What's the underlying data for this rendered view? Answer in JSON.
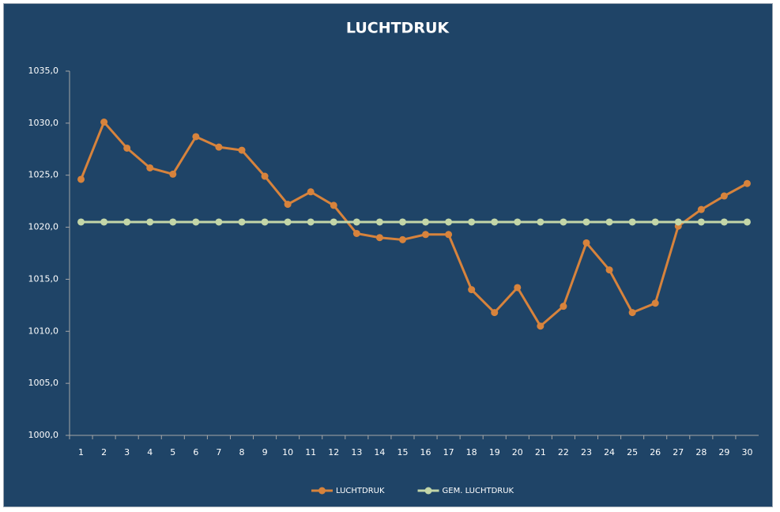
{
  "chart_data": {
    "type": "line",
    "title": "LUCHTDRUK",
    "categories": [
      "1",
      "2",
      "3",
      "4",
      "5",
      "6",
      "7",
      "8",
      "9",
      "10",
      "11",
      "12",
      "13",
      "14",
      "15",
      "16",
      "17",
      "18",
      "19",
      "20",
      "21",
      "22",
      "23",
      "24",
      "25",
      "26",
      "27",
      "28",
      "29",
      "30"
    ],
    "series": [
      {
        "name": "LUCHTDRUK",
        "color": "#d7833c",
        "values": [
          1024.6,
          1030.1,
          1027.6,
          1025.7,
          1025.1,
          1028.7,
          1027.7,
          1027.4,
          1024.9,
          1022.2,
          1023.4,
          1022.1,
          1019.4,
          1019.0,
          1018.8,
          1019.3,
          1019.3,
          1014.0,
          1011.8,
          1014.2,
          1010.5,
          1012.4,
          1018.5,
          1015.9,
          1011.8,
          1012.7,
          1020.1,
          1021.7,
          1023.0,
          1024.2
        ]
      },
      {
        "name": "GEM. LUCHTDRUK",
        "color": "#c3d6a8",
        "values": [
          1020.5,
          1020.5,
          1020.5,
          1020.5,
          1020.5,
          1020.5,
          1020.5,
          1020.5,
          1020.5,
          1020.5,
          1020.5,
          1020.5,
          1020.5,
          1020.5,
          1020.5,
          1020.5,
          1020.5,
          1020.5,
          1020.5,
          1020.5,
          1020.5,
          1020.5,
          1020.5,
          1020.5,
          1020.5,
          1020.5,
          1020.5,
          1020.5,
          1020.5,
          1020.5
        ]
      }
    ],
    "ylim": [
      1000,
      1035
    ],
    "yticks": [
      {
        "value": 1000,
        "label": "1000,0"
      },
      {
        "value": 1005,
        "label": "1005,0"
      },
      {
        "value": 1010,
        "label": "1010,0"
      },
      {
        "value": 1015,
        "label": "1015,0"
      },
      {
        "value": 1020,
        "label": "1020,0"
      },
      {
        "value": 1025,
        "label": "1025,0"
      },
      {
        "value": 1030,
        "label": "1030,0"
      },
      {
        "value": 1035,
        "label": "1035,0"
      }
    ],
    "grid": false,
    "legend": "bottom"
  }
}
